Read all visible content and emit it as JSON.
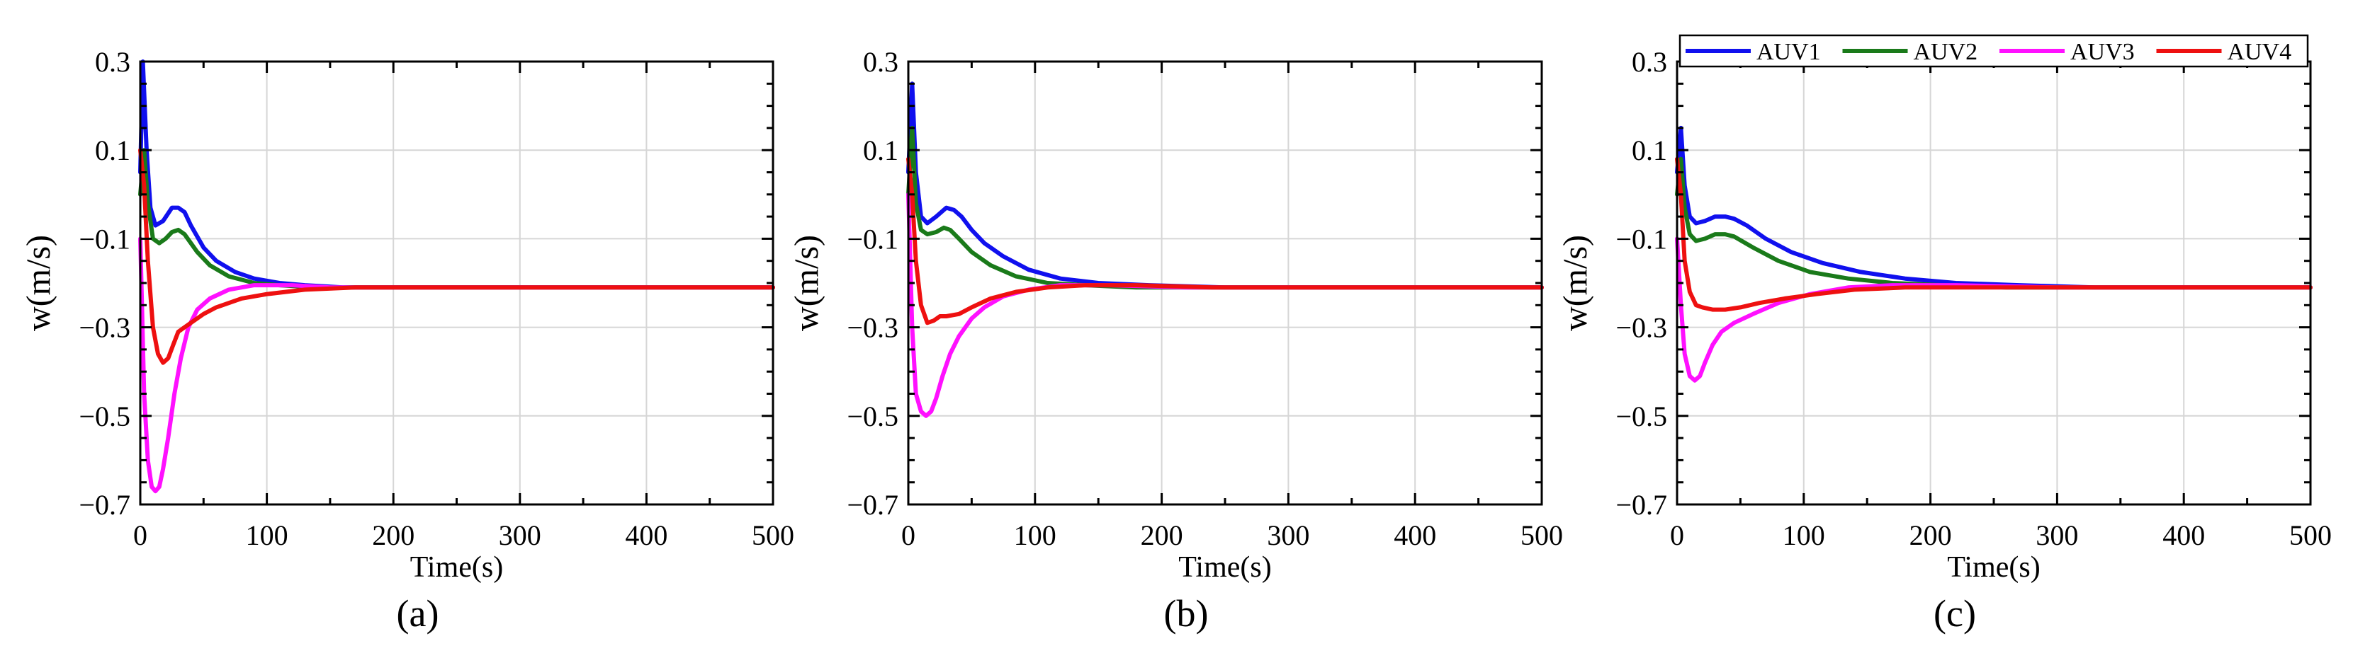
{
  "colors": {
    "AUV1": "#1010ee",
    "AUV2": "#1a7a1a",
    "AUV3": "#ff10ff",
    "AUV4": "#ee1010",
    "grid": "#d6d6d6",
    "axis": "#000000"
  },
  "legend": {
    "panel": "c",
    "placement": "top",
    "entries": [
      "AUV1",
      "AUV2",
      "AUV3",
      "AUV4"
    ]
  },
  "chart_data": [
    {
      "type": "line",
      "panel_label": "(a)",
      "xlabel": "Time(s)",
      "ylabel": "w(m/s)",
      "xlim": [
        0,
        500
      ],
      "ylim": [
        -0.7,
        0.3
      ],
      "xticks": [
        0,
        100,
        200,
        300,
        400,
        500
      ],
      "yticks": [
        -0.7,
        -0.5,
        -0.3,
        -0.1,
        0.1,
        0.3
      ],
      "xtick_labels": [
        "0",
        "100",
        "200",
        "300",
        "400",
        "500"
      ],
      "ytick_labels": [
        "−0.7",
        "−0.5",
        "−0.3",
        "−0.1",
        "0.1",
        "0.3"
      ],
      "grid": true,
      "series": [
        {
          "name": "AUV1",
          "x": [
            0,
            2,
            5,
            8,
            12,
            18,
            25,
            30,
            35,
            40,
            50,
            60,
            75,
            90,
            110,
            130,
            160,
            200,
            300,
            500
          ],
          "y": [
            0.05,
            0.3,
            0.1,
            -0.03,
            -0.07,
            -0.06,
            -0.03,
            -0.03,
            -0.04,
            -0.07,
            -0.12,
            -0.15,
            -0.175,
            -0.19,
            -0.2,
            -0.205,
            -0.21,
            -0.21,
            -0.21,
            -0.21
          ]
        },
        {
          "name": "AUV2",
          "x": [
            0,
            3,
            6,
            10,
            15,
            20,
            25,
            30,
            35,
            45,
            55,
            70,
            90,
            110,
            140,
            180,
            250,
            500
          ],
          "y": [
            0.0,
            0.1,
            -0.02,
            -0.1,
            -0.11,
            -0.1,
            -0.085,
            -0.08,
            -0.09,
            -0.13,
            -0.16,
            -0.185,
            -0.2,
            -0.205,
            -0.21,
            -0.21,
            -0.21,
            -0.21
          ]
        },
        {
          "name": "AUV3",
          "x": [
            0,
            3,
            6,
            9,
            12,
            15,
            18,
            22,
            27,
            32,
            38,
            45,
            55,
            70,
            90,
            120,
            150,
            200,
            500
          ],
          "y": [
            -0.1,
            -0.45,
            -0.6,
            -0.66,
            -0.67,
            -0.66,
            -0.62,
            -0.55,
            -0.45,
            -0.37,
            -0.3,
            -0.26,
            -0.235,
            -0.215,
            -0.205,
            -0.205,
            -0.21,
            -0.21,
            -0.21
          ]
        },
        {
          "name": "AUV4",
          "x": [
            0,
            3,
            6,
            10,
            14,
            18,
            22,
            26,
            30,
            35,
            40,
            50,
            60,
            80,
            100,
            130,
            170,
            220,
            500
          ],
          "y": [
            0.1,
            0.02,
            -0.15,
            -0.3,
            -0.36,
            -0.38,
            -0.37,
            -0.34,
            -0.31,
            -0.3,
            -0.29,
            -0.27,
            -0.255,
            -0.235,
            -0.225,
            -0.215,
            -0.21,
            -0.21,
            -0.21
          ]
        }
      ]
    },
    {
      "type": "line",
      "panel_label": "(b)",
      "xlabel": "Time(s)",
      "ylabel": "w(m/s)",
      "xlim": [
        0,
        500
      ],
      "ylim": [
        -0.7,
        0.3
      ],
      "xticks": [
        0,
        100,
        200,
        300,
        400,
        500
      ],
      "yticks": [
        -0.7,
        -0.5,
        -0.3,
        -0.1,
        0.1,
        0.3
      ],
      "xtick_labels": [
        "0",
        "100",
        "200",
        "300",
        "400",
        "500"
      ],
      "ytick_labels": [
        "−0.7",
        "−0.5",
        "−0.3",
        "−0.1",
        "0.1",
        "0.3"
      ],
      "grid": true,
      "series": [
        {
          "name": "AUV1",
          "x": [
            0,
            3,
            6,
            10,
            15,
            22,
            30,
            36,
            42,
            50,
            60,
            75,
            95,
            120,
            150,
            190,
            250,
            500
          ],
          "y": [
            0.05,
            0.25,
            0.05,
            -0.05,
            -0.065,
            -0.05,
            -0.03,
            -0.035,
            -0.05,
            -0.08,
            -0.11,
            -0.14,
            -0.17,
            -0.19,
            -0.2,
            -0.205,
            -0.21,
            -0.21
          ]
        },
        {
          "name": "AUV2",
          "x": [
            0,
            3,
            6,
            10,
            15,
            22,
            28,
            33,
            40,
            50,
            65,
            85,
            110,
            140,
            180,
            240,
            500
          ],
          "y": [
            0.0,
            0.15,
            -0.02,
            -0.08,
            -0.09,
            -0.085,
            -0.075,
            -0.08,
            -0.1,
            -0.13,
            -0.16,
            -0.185,
            -0.2,
            -0.205,
            -0.21,
            -0.21,
            -0.21
          ]
        },
        {
          "name": "AUV3",
          "x": [
            0,
            3,
            6,
            10,
            14,
            18,
            22,
            27,
            33,
            40,
            50,
            60,
            75,
            95,
            120,
            160,
            220,
            500
          ],
          "y": [
            0.0,
            -0.3,
            -0.45,
            -0.49,
            -0.5,
            -0.49,
            -0.46,
            -0.41,
            -0.36,
            -0.32,
            -0.28,
            -0.255,
            -0.23,
            -0.215,
            -0.205,
            -0.205,
            -0.21,
            -0.21
          ]
        },
        {
          "name": "AUV4",
          "x": [
            0,
            3,
            6,
            10,
            15,
            20,
            25,
            30,
            40,
            50,
            65,
            85,
            110,
            140,
            180,
            240,
            500
          ],
          "y": [
            0.08,
            0.0,
            -0.15,
            -0.25,
            -0.29,
            -0.285,
            -0.275,
            -0.275,
            -0.27,
            -0.255,
            -0.235,
            -0.22,
            -0.21,
            -0.205,
            -0.205,
            -0.21,
            -0.21
          ]
        }
      ]
    },
    {
      "type": "line",
      "panel_label": "(c)",
      "xlabel": "Time(s)",
      "ylabel": "w(m/s)",
      "xlim": [
        0,
        500
      ],
      "ylim": [
        -0.7,
        0.3
      ],
      "xticks": [
        0,
        100,
        200,
        300,
        400,
        500
      ],
      "yticks": [
        -0.7,
        -0.5,
        -0.3,
        -0.1,
        0.1,
        0.3
      ],
      "xtick_labels": [
        "0",
        "100",
        "200",
        "300",
        "400",
        "500"
      ],
      "ytick_labels": [
        "−0.7",
        "−0.5",
        "−0.3",
        "−0.1",
        "0.1",
        "0.3"
      ],
      "grid": true,
      "series": [
        {
          "name": "AUV1",
          "x": [
            0,
            3,
            6,
            10,
            15,
            22,
            30,
            38,
            45,
            55,
            70,
            90,
            115,
            145,
            180,
            220,
            270,
            330,
            400,
            500
          ],
          "y": [
            0.05,
            0.15,
            0.02,
            -0.05,
            -0.065,
            -0.06,
            -0.05,
            -0.05,
            -0.055,
            -0.07,
            -0.1,
            -0.13,
            -0.155,
            -0.175,
            -0.19,
            -0.2,
            -0.205,
            -0.21,
            -0.21,
            -0.21
          ]
        },
        {
          "name": "AUV2",
          "x": [
            0,
            3,
            6,
            10,
            15,
            22,
            30,
            38,
            45,
            60,
            80,
            105,
            135,
            170,
            210,
            260,
            330,
            500
          ],
          "y": [
            0.0,
            0.08,
            -0.03,
            -0.09,
            -0.105,
            -0.1,
            -0.09,
            -0.09,
            -0.095,
            -0.12,
            -0.15,
            -0.175,
            -0.19,
            -0.2,
            -0.205,
            -0.21,
            -0.21,
            -0.21
          ]
        },
        {
          "name": "AUV3",
          "x": [
            0,
            3,
            6,
            10,
            14,
            18,
            22,
            28,
            35,
            45,
            60,
            80,
            105,
            135,
            170,
            220,
            300,
            500
          ],
          "y": [
            -0.1,
            -0.25,
            -0.36,
            -0.41,
            -0.42,
            -0.41,
            -0.38,
            -0.34,
            -0.31,
            -0.29,
            -0.27,
            -0.245,
            -0.225,
            -0.21,
            -0.205,
            -0.205,
            -0.21,
            -0.21
          ]
        },
        {
          "name": "AUV4",
          "x": [
            0,
            3,
            6,
            10,
            15,
            20,
            28,
            38,
            50,
            65,
            85,
            110,
            140,
            180,
            230,
            300,
            500
          ],
          "y": [
            0.08,
            0.0,
            -0.15,
            -0.22,
            -0.25,
            -0.255,
            -0.26,
            -0.26,
            -0.255,
            -0.245,
            -0.235,
            -0.225,
            -0.215,
            -0.21,
            -0.21,
            -0.21,
            -0.21
          ]
        }
      ]
    }
  ]
}
